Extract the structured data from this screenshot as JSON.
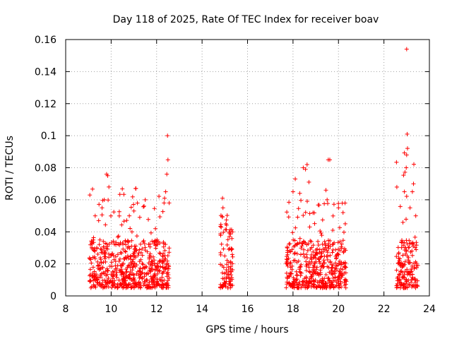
{
  "chart_data": {
    "type": "scatter",
    "title": "Day 118 of 2025, Rate Of TEC Index for receiver boav",
    "xlabel": "GPS time / hours",
    "ylabel": "ROTI / TECUs",
    "xlim": [
      8,
      24
    ],
    "ylim": [
      0,
      0.16
    ],
    "xticks": [
      8,
      10,
      12,
      14,
      16,
      18,
      20,
      22,
      24
    ],
    "yticks": [
      0,
      0.02,
      0.04,
      0.06,
      0.08,
      0.1,
      0.12,
      0.14,
      0.16
    ],
    "xtick_labels": [
      "8",
      "10",
      "12",
      "14",
      "16",
      "18",
      "20",
      "22",
      "24"
    ],
    "ytick_labels": [
      "0",
      "0.02",
      "0.04",
      "0.06",
      "0.08",
      "0.1",
      "0.12",
      "0.14",
      "0.16"
    ],
    "grid": true,
    "marker": "+",
    "series_color": "#ff0000",
    "coverage": [
      {
        "x_start": 9.05,
        "x_end": 12.55,
        "typical_roti": [
          0.005,
          0.035
        ],
        "peak_roti": 0.1
      },
      {
        "x_start": 14.8,
        "x_end": 15.35,
        "typical_roti": [
          0.005,
          0.04
        ],
        "peak_roti": 0.061
      },
      {
        "x_start": 17.7,
        "x_end": 20.35,
        "typical_roti": [
          0.005,
          0.035
        ],
        "peak_roti": 0.085
      },
      {
        "x_start": 22.55,
        "x_end": 23.5,
        "typical_roti": [
          0.005,
          0.035
        ],
        "peak_roti": 0.154
      }
    ],
    "notable_points": [
      {
        "x": 9.8,
        "y": 0.076
      },
      {
        "x": 9.85,
        "y": 0.075
      },
      {
        "x": 9.9,
        "y": 0.068
      },
      {
        "x": 9.7,
        "y": 0.06
      },
      {
        "x": 9.6,
        "y": 0.055
      },
      {
        "x": 9.3,
        "y": 0.05
      },
      {
        "x": 9.45,
        "y": 0.047
      },
      {
        "x": 10.8,
        "y": 0.05
      },
      {
        "x": 11.0,
        "y": 0.053
      },
      {
        "x": 11.5,
        "y": 0.06
      },
      {
        "x": 11.45,
        "y": 0.056
      },
      {
        "x": 11.95,
        "y": 0.042
      },
      {
        "x": 12.35,
        "y": 0.061
      },
      {
        "x": 12.4,
        "y": 0.065
      },
      {
        "x": 12.45,
        "y": 0.076
      },
      {
        "x": 12.5,
        "y": 0.085
      },
      {
        "x": 12.48,
        "y": 0.1
      },
      {
        "x": 12.55,
        "y": 0.058
      },
      {
        "x": 14.9,
        "y": 0.061
      },
      {
        "x": 14.92,
        "y": 0.055
      },
      {
        "x": 15.05,
        "y": 0.045
      },
      {
        "x": 15.2,
        "y": 0.04
      },
      {
        "x": 18.0,
        "y": 0.065
      },
      {
        "x": 18.1,
        "y": 0.073
      },
      {
        "x": 18.3,
        "y": 0.064
      },
      {
        "x": 18.45,
        "y": 0.08
      },
      {
        "x": 18.55,
        "y": 0.079
      },
      {
        "x": 18.62,
        "y": 0.082
      },
      {
        "x": 18.7,
        "y": 0.071
      },
      {
        "x": 19.55,
        "y": 0.085
      },
      {
        "x": 19.62,
        "y": 0.085
      },
      {
        "x": 19.45,
        "y": 0.066
      },
      {
        "x": 19.5,
        "y": 0.06
      },
      {
        "x": 20.0,
        "y": 0.055
      },
      {
        "x": 20.2,
        "y": 0.052
      },
      {
        "x": 20.3,
        "y": 0.045
      },
      {
        "x": 22.9,
        "y": 0.065
      },
      {
        "x": 23.0,
        "y": 0.154
      },
      {
        "x": 23.02,
        "y": 0.101
      },
      {
        "x": 23.0,
        "y": 0.088
      },
      {
        "x": 22.98,
        "y": 0.08
      },
      {
        "x": 23.3,
        "y": 0.07
      },
      {
        "x": 23.25,
        "y": 0.065
      },
      {
        "x": 23.4,
        "y": 0.05
      },
      {
        "x": 23.15,
        "y": 0.055
      }
    ]
  }
}
